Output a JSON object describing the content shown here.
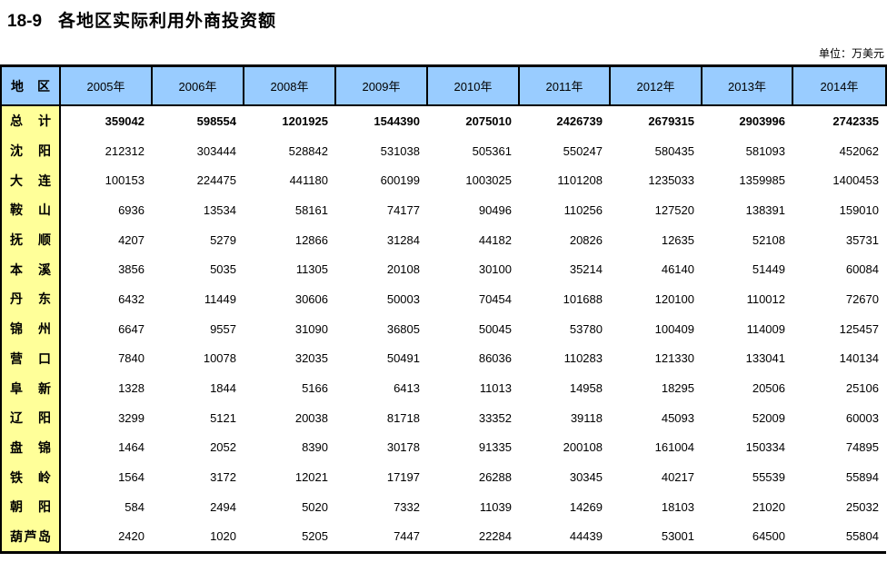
{
  "title": {
    "number": "18-9",
    "text": "各地区实际利用外商投资额"
  },
  "unit_label": "单位：万美元",
  "colors": {
    "header_bg": "#99CCFF",
    "region_bg": "#FFFF99",
    "border": "#000000",
    "page_bg": "#FFFFFF"
  },
  "table": {
    "region_header": "地区",
    "year_headers": [
      "2005年",
      "2006年",
      "2008年",
      "2009年",
      "2010年",
      "2011年",
      "2012年",
      "2013年",
      "2014年"
    ],
    "rows": [
      {
        "region": "总计",
        "bold": true,
        "values": [
          359042,
          598554,
          1201925,
          1544390,
          2075010,
          2426739,
          2679315,
          2903996,
          2742335
        ]
      },
      {
        "region": "沈阳",
        "bold": false,
        "values": [
          212312,
          303444,
          528842,
          531038,
          505361,
          550247,
          580435,
          581093,
          452062
        ]
      },
      {
        "region": "大连",
        "bold": false,
        "values": [
          100153,
          224475,
          441180,
          600199,
          1003025,
          1101208,
          1235033,
          1359985,
          1400453
        ]
      },
      {
        "region": "鞍山",
        "bold": false,
        "values": [
          6936,
          13534,
          58161,
          74177,
          90496,
          110256,
          127520,
          138391,
          159010
        ]
      },
      {
        "region": "抚顺",
        "bold": false,
        "values": [
          4207,
          5279,
          12866,
          31284,
          44182,
          20826,
          12635,
          52108,
          35731
        ]
      },
      {
        "region": "本溪",
        "bold": false,
        "values": [
          3856,
          5035,
          11305,
          20108,
          30100,
          35214,
          46140,
          51449,
          60084
        ]
      },
      {
        "region": "丹东",
        "bold": false,
        "values": [
          6432,
          11449,
          30606,
          50003,
          70454,
          101688,
          120100,
          110012,
          72670
        ]
      },
      {
        "region": "锦州",
        "bold": false,
        "values": [
          6647,
          9557,
          31090,
          36805,
          50045,
          53780,
          100409,
          114009,
          125457
        ]
      },
      {
        "region": "营口",
        "bold": false,
        "values": [
          7840,
          10078,
          32035,
          50491,
          86036,
          110283,
          121330,
          133041,
          140134
        ]
      },
      {
        "region": "阜新",
        "bold": false,
        "values": [
          1328,
          1844,
          5166,
          6413,
          11013,
          14958,
          18295,
          20506,
          25106
        ]
      },
      {
        "region": "辽阳",
        "bold": false,
        "values": [
          3299,
          5121,
          20038,
          81718,
          33352,
          39118,
          45093,
          52009,
          60003
        ]
      },
      {
        "region": "盘锦",
        "bold": false,
        "values": [
          1464,
          2052,
          8390,
          30178,
          91335,
          200108,
          161004,
          150334,
          74895
        ]
      },
      {
        "region": "铁岭",
        "bold": false,
        "values": [
          1564,
          3172,
          12021,
          17197,
          26288,
          30345,
          40217,
          55539,
          55894
        ]
      },
      {
        "region": "朝阳",
        "bold": false,
        "values": [
          584,
          2494,
          5020,
          7332,
          11039,
          14269,
          18103,
          21020,
          25032
        ]
      },
      {
        "region": "葫芦岛",
        "bold": false,
        "values": [
          2420,
          1020,
          5205,
          7447,
          22284,
          44439,
          53001,
          64500,
          55804
        ]
      }
    ]
  }
}
